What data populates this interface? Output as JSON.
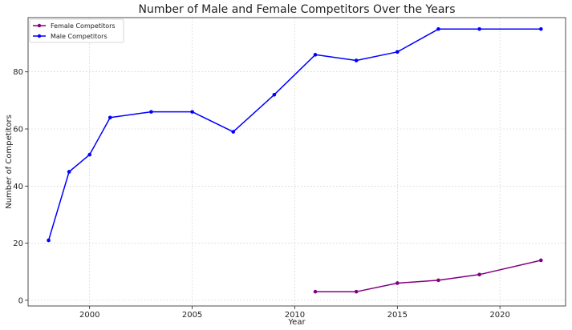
{
  "chart_data": {
    "type": "line",
    "title": "Number of Male and Female Competitors Over the Years",
    "xlabel": "Year",
    "ylabel": "Number of Competitors",
    "xlim": [
      1997,
      2023.2
    ],
    "ylim": [
      -2,
      99
    ],
    "xticks": [
      2000,
      2005,
      2010,
      2015,
      2020
    ],
    "yticks": [
      0,
      20,
      40,
      60,
      80
    ],
    "grid": true,
    "legend_position": "top-left",
    "series": [
      {
        "name": "Female Competitors",
        "color": "#800080",
        "x": [
          2011,
          2013,
          2015,
          2017,
          2019,
          2022
        ],
        "y": [
          3,
          3,
          6,
          7,
          9,
          14
        ]
      },
      {
        "name": "Male Competitors",
        "color": "#0000ff",
        "x": [
          1998,
          1999,
          2000,
          2001,
          2003,
          2005,
          2007,
          2009,
          2011,
          2013,
          2015,
          2017,
          2019,
          2022
        ],
        "y": [
          21,
          45,
          51,
          64,
          66,
          66,
          59,
          72,
          86,
          84,
          87,
          95,
          95,
          95
        ]
      }
    ]
  }
}
